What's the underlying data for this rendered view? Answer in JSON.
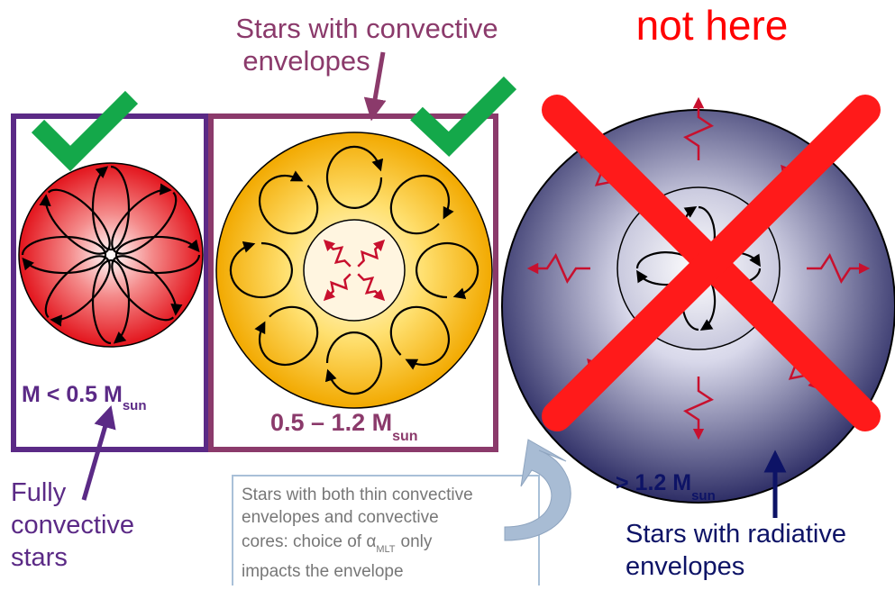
{
  "top_label": {
    "lines": [
      "Stars with convective",
      "envelopes"
    ]
  },
  "not_here": "not here",
  "masses": [
    {
      "text": "M < 0.5 M",
      "sub": "sun"
    },
    {
      "text": "0.5 – 1.2 M",
      "sub": "sun"
    },
    {
      "text": "> 1.2 M",
      "sub": "sun"
    }
  ],
  "left_label": {
    "lines": [
      "Fully",
      "convective",
      "stars"
    ]
  },
  "right_label": {
    "lines": [
      "Stars with radiative",
      "envelopes"
    ]
  },
  "note": {
    "line1": "Stars with both thin convective",
    "line2": "envelopes and convective",
    "line3": {
      "text": "cores: choice of α",
      "sub": "MLT",
      "after": "only"
    },
    "line4": "impacts the envelope"
  }
}
